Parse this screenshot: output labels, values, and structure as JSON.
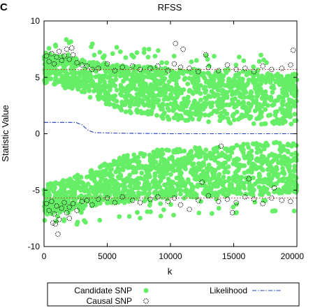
{
  "panel_label": "C",
  "chart_data": {
    "type": "scatter",
    "title": "RFSS",
    "xlabel": "k",
    "ylabel": "Statistic Value",
    "xlim": [
      0,
      20000
    ],
    "ylim": [
      -10,
      10
    ],
    "xticks": [
      "0",
      "5000",
      "10000",
      "15000",
      "20000"
    ],
    "yticks": [
      "10",
      "5",
      "0",
      "-5",
      "-10"
    ],
    "grid": false,
    "legend_position": "bottom (below plot)",
    "colors": {
      "candidate": "#66ee66",
      "causal": "#000000",
      "likelihood": "#1f3fbf",
      "threshold": "#d03030"
    },
    "series": [
      {
        "name": "Candidate SNP",
        "kind": "scatter",
        "description_of_band": "dense cloud filling roughly |y| between 1 and 6; upper envelope starts near 7 at k=0 and falls to about 5.5 at k=20000, lower envelope mirrors it",
        "envelope_upper": {
          "x": [
            0,
            2000,
            5000,
            10000,
            15000,
            20000
          ],
          "y": [
            7.2,
            6.8,
            6.2,
            5.8,
            5.5,
            5.3
          ]
        },
        "envelope_lower": {
          "x": [
            0,
            2000,
            5000,
            10000,
            15000,
            20000
          ],
          "y": [
            -7.2,
            -6.8,
            -6.2,
            -5.8,
            -5.5,
            -5.3
          ]
        },
        "inner_gap": {
          "x": [
            0,
            3000,
            6000,
            10000,
            20000
          ],
          "y": [
            4.5,
            3.5,
            2.0,
            1.2,
            0.6
          ]
        }
      },
      {
        "name": "Causal SNP",
        "kind": "scatter-open-circle",
        "points": [
          [
            200,
            6.9
          ],
          [
            400,
            6.4
          ],
          [
            600,
            7.1
          ],
          [
            800,
            6.2
          ],
          [
            1000,
            6.8
          ],
          [
            1200,
            7.3
          ],
          [
            1400,
            6.5
          ],
          [
            1600,
            6.9
          ],
          [
            1800,
            7.5
          ],
          [
            2000,
            6.6
          ],
          [
            2300,
            7.0
          ],
          [
            2600,
            6.3
          ],
          [
            3000,
            6.1
          ],
          [
            3400,
            6.0
          ],
          [
            3800,
            5.7
          ],
          [
            4300,
            5.8
          ],
          [
            5000,
            6.2
          ],
          [
            5600,
            5.6
          ],
          [
            6200,
            5.9
          ],
          [
            7000,
            6.0
          ],
          [
            7600,
            5.7
          ],
          [
            8400,
            5.8
          ],
          [
            9000,
            6.0
          ],
          [
            9800,
            5.6
          ],
          [
            10300,
            6.2
          ],
          [
            10800,
            5.9
          ],
          [
            11500,
            5.8
          ],
          [
            12200,
            5.5
          ],
          [
            13000,
            5.9
          ],
          [
            13800,
            5.6
          ],
          [
            14500,
            6.1
          ],
          [
            15200,
            5.7
          ],
          [
            15900,
            5.8
          ],
          [
            16600,
            5.5
          ],
          [
            17300,
            6.0
          ],
          [
            18000,
            5.7
          ],
          [
            18800,
            5.8
          ],
          [
            19500,
            6.1
          ],
          [
            11000,
            7.5
          ],
          [
            12800,
            7.0
          ],
          [
            10400,
            8.0
          ],
          [
            2200,
            7.6
          ],
          [
            19700,
            7.4
          ],
          [
            200,
            -6.2
          ],
          [
            400,
            -6.8
          ],
          [
            600,
            -6.0
          ],
          [
            800,
            -7.1
          ],
          [
            1000,
            -6.4
          ],
          [
            1200,
            -7.6
          ],
          [
            1400,
            -6.6
          ],
          [
            1600,
            -6.1
          ],
          [
            1800,
            -7.0
          ],
          [
            2000,
            -6.5
          ],
          [
            2300,
            -6.2
          ],
          [
            2600,
            -6.8
          ],
          [
            3000,
            -6.0
          ],
          [
            3400,
            -5.9
          ],
          [
            3800,
            -6.3
          ],
          [
            900,
            -8.0
          ],
          [
            1100,
            -8.9
          ],
          [
            700,
            -7.9
          ],
          [
            4300,
            -5.8
          ],
          [
            5000,
            -5.7
          ],
          [
            5600,
            -6.1
          ],
          [
            6200,
            -5.6
          ],
          [
            7000,
            -5.9
          ],
          [
            7600,
            -6.1
          ],
          [
            8400,
            -5.8
          ],
          [
            9000,
            -5.6
          ],
          [
            9800,
            -6.0
          ],
          [
            10300,
            -5.7
          ],
          [
            10800,
            -6.3
          ],
          [
            11500,
            -6.7
          ],
          [
            12200,
            -5.9
          ],
          [
            13000,
            -5.5
          ],
          [
            13800,
            -6.0
          ],
          [
            14500,
            -5.8
          ],
          [
            15200,
            -6.1
          ],
          [
            15900,
            -5.6
          ],
          [
            16600,
            -5.8
          ],
          [
            17300,
            -6.2
          ],
          [
            18000,
            -5.7
          ],
          [
            18800,
            -5.9
          ],
          [
            19500,
            -6.0
          ],
          [
            12500,
            -4.3
          ],
          [
            16200,
            -4.0
          ],
          [
            14900,
            -7.0
          ],
          [
            14000,
            -1.1
          ],
          [
            18200,
            -4.8
          ],
          [
            2000,
            -7.5
          ]
        ]
      },
      {
        "name": "Likelihood",
        "kind": "line-dash-dot",
        "points": [
          [
            0,
            1.0
          ],
          [
            2500,
            1.0
          ],
          [
            3000,
            0.8
          ],
          [
            3500,
            0.3
          ],
          [
            4000,
            0.1
          ],
          [
            6000,
            0.05
          ],
          [
            10000,
            0.0
          ],
          [
            20000,
            0.0
          ]
        ]
      },
      {
        "kind": "threshold-line-dotted",
        "points": [
          [
            0,
            5.7
          ],
          [
            20000,
            5.7
          ]
        ]
      },
      {
        "kind": "threshold-line-dotted",
        "points": [
          [
            0,
            -5.7
          ],
          [
            20000,
            -5.7
          ]
        ]
      }
    ]
  }
}
